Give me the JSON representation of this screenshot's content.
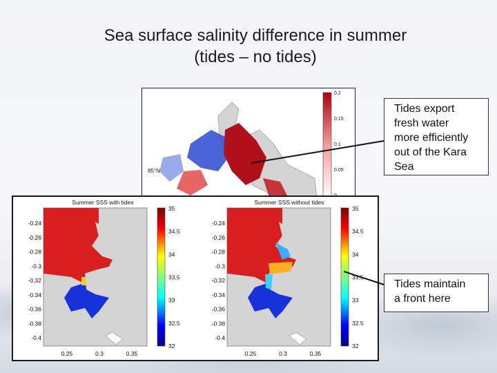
{
  "title": {
    "line1": "Sea surface salinity difference in summer",
    "line2": "(tides – no tides)"
  },
  "top_map": {
    "latitude_label": "85°N",
    "colorbar_ticks": [
      "0.2",
      "0.15",
      "0.1",
      "0.05",
      "0"
    ]
  },
  "left_map": {
    "title": "Summer SSS with tides",
    "y_ticks": [
      "-0.24",
      "-0.26",
      "-0.28",
      "-0.3",
      "-0.32",
      "-0.34",
      "-0.36",
      "-0.38",
      "-0.4"
    ],
    "x_ticks": [
      "0.25",
      "0.3",
      "0.35"
    ],
    "colorbar_ticks": [
      "35",
      "34.5",
      "34",
      "33.5",
      "33",
      "32.5",
      "32"
    ]
  },
  "right_map": {
    "title": "Summer SSS without tides",
    "y_ticks": [
      "-0.24",
      "-0.26",
      "-0.28",
      "-0.3",
      "-0.32",
      "-0.34",
      "-0.36",
      "-0.38",
      "-0.4"
    ],
    "x_ticks": [
      "0.25",
      "0.3",
      "0.35"
    ],
    "colorbar_ticks": [
      "35",
      "34.5",
      "34",
      "33.5",
      "33",
      "32.5",
      "32"
    ]
  },
  "notes": {
    "note1": [
      "Tides export",
      "fresh water",
      "more efficiently",
      "out of the Kara",
      "Sea"
    ],
    "note2": [
      "Tides maintain",
      "a front here"
    ]
  },
  "colors": {
    "red": "#c8141a",
    "blue": "#1428c8",
    "land": "#d4d4d4"
  }
}
